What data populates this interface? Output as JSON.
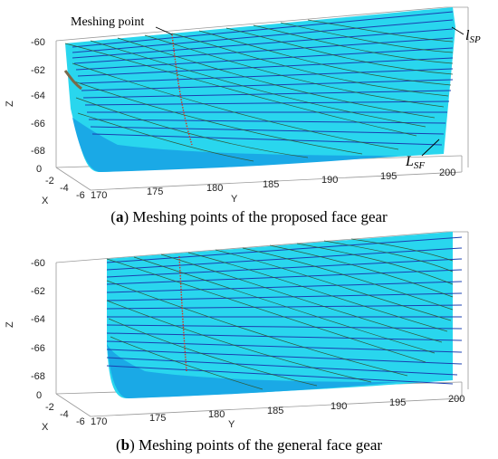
{
  "panel_a": {
    "caption_letter": "a",
    "caption_text": "Meshing points of the proposed face gear",
    "z_ticks": [
      "-60",
      "-62",
      "-64",
      "-66",
      "-68"
    ],
    "z_label": "Z",
    "y_ticks": [
      "170",
      "175",
      "180",
      "185",
      "190",
      "195",
      "200"
    ],
    "y_label": "Y",
    "x_ticks": [
      "0",
      "-2",
      "-4",
      "-6"
    ],
    "x_label": "X",
    "annotation_meshing": "Meshing point",
    "annotation_lsp_main": "l",
    "annotation_lsp_sub": "SP",
    "annotation_lsf_main": "L",
    "annotation_lsf_sub": "SF"
  },
  "panel_b": {
    "caption_letter": "b",
    "caption_text": "Meshing points of the general face gear",
    "z_ticks": [
      "-60",
      "-62",
      "-64",
      "-66",
      "-68"
    ],
    "z_label": "Z",
    "y_ticks": [
      "170",
      "175",
      "180",
      "185",
      "190",
      "195",
      "200"
    ],
    "y_label": "Y",
    "x_ticks": [
      "0",
      "-2",
      "-4",
      "-6"
    ],
    "x_label": "X"
  },
  "colors": {
    "surface": "#29d6ee",
    "surface_dark": "#1aa9e6",
    "contact_lines": "#1a3fb0",
    "grid_lines": "#2f5a3a",
    "meshing_points": "#d6301f",
    "axis": "#555555"
  }
}
